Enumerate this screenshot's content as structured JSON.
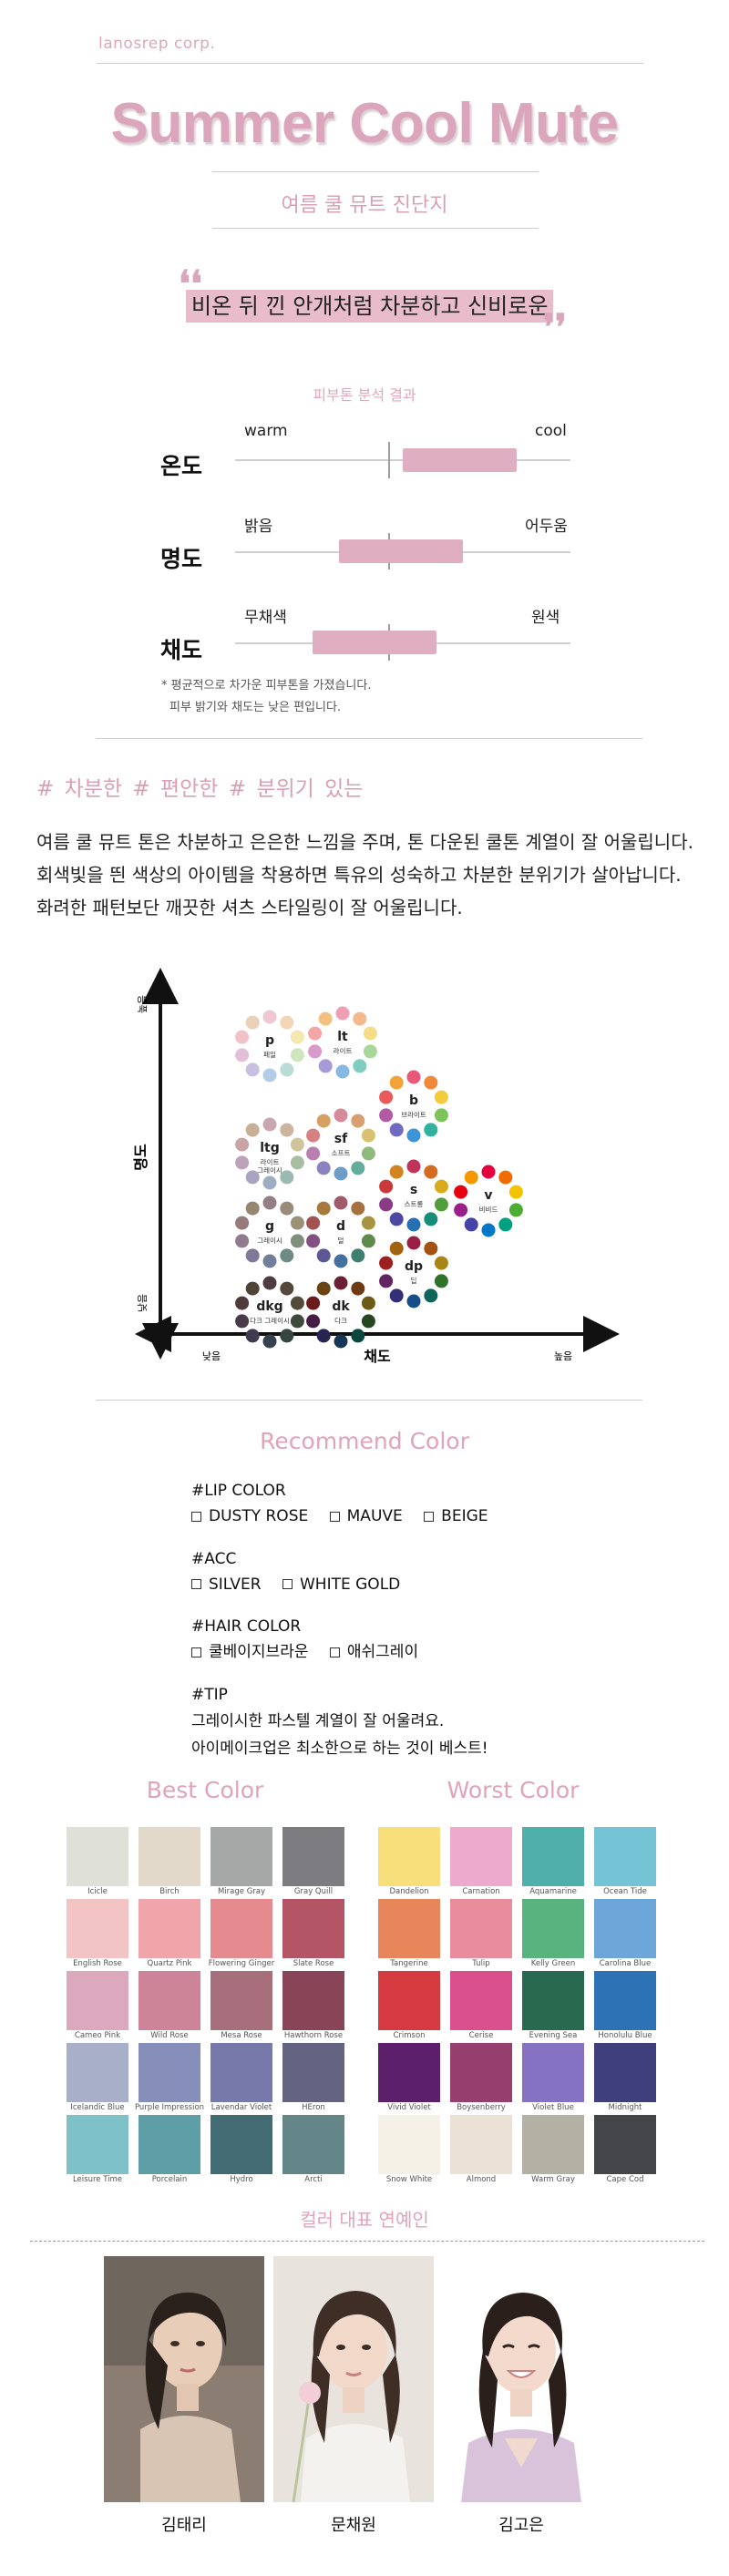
{
  "header": {
    "company": "lanosrep corp.",
    "title": "Summer Cool Mute",
    "subtitle": "여름 쿨 뮤트 진단지"
  },
  "quote": {
    "text": "비온 뒤 낀 안개처럼 차분하고 신비로운",
    "open_mark": "❛❛",
    "close_mark": "❜❜"
  },
  "analysis": {
    "title": "피부톤 분석 결과",
    "scales": [
      {
        "label": "온도",
        "left": "warm",
        "right": "cool",
        "bar_start": 0.5,
        "bar_end": 0.84
      },
      {
        "label": "명도",
        "left": "밝음",
        "right": "어두움",
        "bar_start": 0.31,
        "bar_end": 0.68
      },
      {
        "label": "채도",
        "left": "무채색",
        "right": "원색",
        "bar_start": 0.23,
        "bar_end": 0.6
      }
    ],
    "note_line1": "* 평균적으로 차가운 피부톤을 가졌습니다.",
    "note_line2": "피부 밝기와 채도는 낮은 편입니다."
  },
  "tags": "# 차분한  # 편안한  # 분위기 있는",
  "description": "여름 쿨 뮤트 톤은 차분하고 은은한 느낌을 주며, 톤 다운된 쿨톤 계열이 잘 어울립니다. 회색빛을 띈 색상의 아이템을 착용하면 특유의 성숙하고 차분한 분위기가 살아납니다. 화려한 패턴보단 깨끗한 셔츠 스타일링이 잘 어울립니다.",
  "tone_chart": {
    "y_axis_label": "명도",
    "y_high": "높음",
    "y_low": "낮음",
    "x_axis_label": "채도",
    "x_low": "낮음",
    "x_high": "높음",
    "tones": [
      {
        "code": "p",
        "name": "페일",
        "colors": [
          "#f0c8d2",
          "#f3d6b8",
          "#f6e7b0",
          "#cfe5bd",
          "#b9ddd6",
          "#b3cde6",
          "#c9bfe0",
          "#e3bfd9",
          "#f2c2c9",
          "#e9d0b7"
        ]
      },
      {
        "code": "lt",
        "name": "라이트",
        "colors": [
          "#ef9fb4",
          "#f4b98d",
          "#f5dd88",
          "#a9d79a",
          "#7fcdbf",
          "#86b8e3",
          "#a69bd6",
          "#d79acb",
          "#f3a6a6",
          "#f1c27f"
        ]
      },
      {
        "code": "b",
        "name": "브라이트",
        "colors": [
          "#e9577a",
          "#f08a3b",
          "#f3cb3c",
          "#7cc35a",
          "#2fb39c",
          "#3d94d7",
          "#6f6bc3",
          "#b35aa7",
          "#ea5a5a",
          "#f2a43a"
        ]
      },
      {
        "code": "ltg",
        "name": "라이트\n그레이시",
        "colors": [
          "#c9a7b0",
          "#cdb49f",
          "#cfc59c",
          "#a9bda2",
          "#9bb9b2",
          "#9eadc2",
          "#aaa3bf",
          "#bda3b7",
          "#c8a4a6",
          "#c7b095"
        ]
      },
      {
        "code": "sf",
        "name": "소프트",
        "colors": [
          "#d48a9a",
          "#d99f6e",
          "#d8c270",
          "#8fba7e",
          "#63ad9d",
          "#6c9dc9",
          "#8a83c0",
          "#b97fb0",
          "#d68181",
          "#d6a064"
        ]
      },
      {
        "code": "s",
        "name": "스트롱",
        "colors": [
          "#c2335a",
          "#d66a20",
          "#d9ab1c",
          "#4f9e3a",
          "#168c79",
          "#2470b3",
          "#4d48a1",
          "#8b3a86",
          "#c93a3a",
          "#d38320"
        ]
      },
      {
        "code": "v",
        "name": "비비드",
        "colors": [
          "#e4003f",
          "#f06b00",
          "#f3c300",
          "#4cae30",
          "#00a082",
          "#0078c8",
          "#4643a8",
          "#9a1f8a",
          "#e60012",
          "#f39800"
        ]
      },
      {
        "code": "g",
        "name": "그레이시",
        "colors": [
          "#957f86",
          "#9a8a7a",
          "#999178",
          "#7f8f7b",
          "#6f8a85",
          "#70809a",
          "#7f7896",
          "#907a8e",
          "#977a7c",
          "#978670"
        ]
      },
      {
        "code": "d",
        "name": "덜",
        "colors": [
          "#a05a6b",
          "#a7703f",
          "#a79440",
          "#5e8a4d",
          "#3f7f70",
          "#43709e",
          "#5d5893",
          "#844f81",
          "#a35252",
          "#a57a3c"
        ]
      },
      {
        "code": "dp",
        "name": "딥",
        "colors": [
          "#9b1f44",
          "#a4520f",
          "#a98613",
          "#2f7229",
          "#0b6659",
          "#154f8a",
          "#33307a",
          "#632463",
          "#9c2020",
          "#a2610f"
        ]
      },
      {
        "code": "dkg",
        "name": "다크 그레이시",
        "colors": [
          "#4e3c42",
          "#54473b",
          "#524b39",
          "#3d4a3b",
          "#34463f",
          "#36404f",
          "#3f3a4f",
          "#4a3a49",
          "#503b3c",
          "#504436"
        ]
      },
      {
        "code": "dk",
        "name": "다크",
        "colors": [
          "#6b1f36",
          "#6e3a14",
          "#6d5a14",
          "#24471f",
          "#0b463c",
          "#163659",
          "#272452",
          "#451c45",
          "#6a1b1b",
          "#6b4414"
        ]
      }
    ]
  },
  "recommend": {
    "title": "Recommend Color",
    "lip": {
      "category": "#LIP COLOR",
      "items": [
        "DUSTY ROSE",
        "MAUVE",
        "BEIGE"
      ]
    },
    "acc": {
      "category": "#ACC",
      "items": [
        "SILVER",
        "WHITE GOLD"
      ]
    },
    "hair": {
      "category": "#HAIR COLOR",
      "items": [
        "쿨베이지브라운",
        "애쉬그레이"
      ]
    },
    "tip": {
      "category": "#TIP",
      "line1": "그레이시한 파스텔 계열이 잘 어울려요.",
      "line2": "아이메이크업은 최소한으로 하는 것이 베스트!"
    }
  },
  "best_colors": {
    "title": "Best Color",
    "swatches": [
      {
        "name": "Icicle",
        "color": "#dfe0d8"
      },
      {
        "name": "Birch",
        "color": "#e3d9ca"
      },
      {
        "name": "Mirage Gray",
        "color": "#a6a8a8"
      },
      {
        "name": "Gray Quill",
        "color": "#7d7c80"
      },
      {
        "name": "English Rose",
        "color": "#f2c4c4"
      },
      {
        "name": "Quartz Pink",
        "color": "#efa5aa"
      },
      {
        "name": "Flowering Ginger",
        "color": "#e58b90"
      },
      {
        "name": "Slate Rose",
        "color": "#b45565"
      },
      {
        "name": "Cameo Pink",
        "color": "#dba8bd"
      },
      {
        "name": "Wild Rose",
        "color": "#cd8398"
      },
      {
        "name": "Mesa Rose",
        "color": "#a76e7b"
      },
      {
        "name": "Hawthorn Rose",
        "color": "#874557"
      },
      {
        "name": "Icelandic Blue",
        "color": "#a8afc8"
      },
      {
        "name": "Purple Impression",
        "color": "#868fb9"
      },
      {
        "name": "Lavendar Violet",
        "color": "#7779ab"
      },
      {
        "name": "HEron",
        "color": "#646382"
      },
      {
        "name": "Leisure Time",
        "color": "#7fc1c9"
      },
      {
        "name": "Porcelain",
        "color": "#5e9ea6"
      },
      {
        "name": "Hydro",
        "color": "#436b73"
      },
      {
        "name": "Arcti",
        "color": "#648688"
      }
    ]
  },
  "worst_colors": {
    "title": "Worst Color",
    "swatches": [
      {
        "name": "Dandelion",
        "color": "#f9de7c"
      },
      {
        "name": "Carnation",
        "color": "#edaacd"
      },
      {
        "name": "Aquamarine",
        "color": "#4fb0ab"
      },
      {
        "name": "Ocean Tide",
        "color": "#74c4d6"
      },
      {
        "name": "Tangerine",
        "color": "#e6865a"
      },
      {
        "name": "Tulip",
        "color": "#e98d9d"
      },
      {
        "name": "Kelly Green",
        "color": "#59b37f"
      },
      {
        "name": "Carolina Blue",
        "color": "#6da6d9"
      },
      {
        "name": "Crimson",
        "color": "#d43a3f"
      },
      {
        "name": "Cerise",
        "color": "#d9508d"
      },
      {
        "name": "Evening Sea",
        "color": "#28694f"
      },
      {
        "name": "Honolulu Blue",
        "color": "#2e72b6"
      },
      {
        "name": "Vivid Violet",
        "color": "#5c1f6c"
      },
      {
        "name": "Boysenberry",
        "color": "#963f6e"
      },
      {
        "name": "Violet Blue",
        "color": "#8572c3"
      },
      {
        "name": "Midnight",
        "color": "#3f3f7d"
      },
      {
        "name": "Snow White",
        "color": "#f6f1e6"
      },
      {
        "name": "Almond",
        "color": "#ebe2d5"
      },
      {
        "name": "Warm Gray",
        "color": "#b3b0a4"
      },
      {
        "name": "Cape Cod",
        "color": "#434548"
      }
    ]
  },
  "celebrities": {
    "title": "컬러 대표 연예인",
    "people": [
      {
        "name": "김태리"
      },
      {
        "name": "문채원"
      },
      {
        "name": "김고은"
      }
    ]
  }
}
